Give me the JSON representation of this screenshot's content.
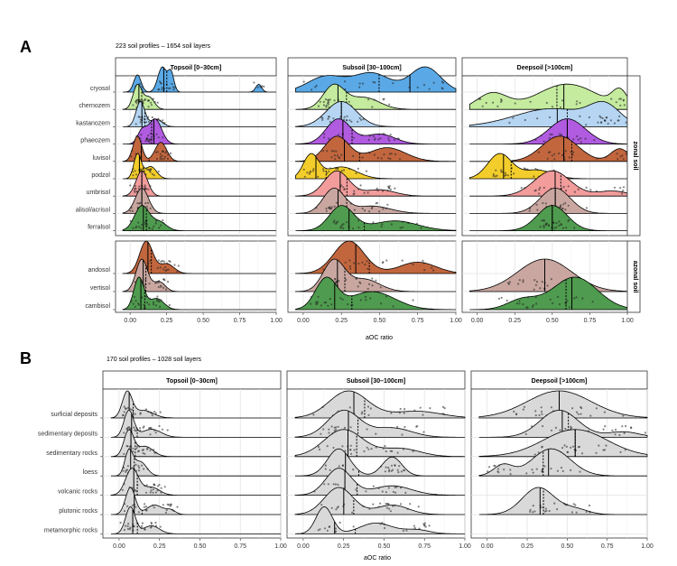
{
  "chart_data": {
    "type": "ridgeline",
    "panel_A": {
      "label": "A",
      "subtitle": "223 soil profiles – 1654 soil layers",
      "columns": [
        "Topsoil [0–30cm]",
        "Subsoil [30–100cm]",
        "Deepsoil [>100cm]"
      ],
      "groups": [
        {
          "name": "zonal soil",
          "rows": [
            "cryosol",
            "chernozem",
            "kastanozem",
            "phaeozem",
            "luvisol",
            "podzol",
            "umbrisol",
            "alisol/acrisol",
            "ferralsol"
          ]
        },
        {
          "name": "azonal soil",
          "rows": [
            "andosol",
            "vertisol",
            "cambisol"
          ]
        }
      ],
      "colors": {
        "cryosol": "#5aa9e6",
        "chernozem": "#c4eb9e",
        "kastanozem": "#b5d5f2",
        "phaeozem": "#b05be0",
        "luvisol": "#c2663e",
        "podzol": "#f3cd2b",
        "umbrisol": "#f29c9c",
        "alisol/acrisol": "#c9a7a0",
        "ferralsol": "#4f9b4f",
        "andosol": "#c2663e",
        "vertisol": "#c9a7a0",
        "cambisol": "#4f9b4f"
      },
      "xlim": [
        -0.1,
        1.0
      ],
      "xticks": [
        "0.00",
        "0.25",
        "0.50",
        "0.75",
        "1.00"
      ],
      "xlabel": "aOC ratio",
      "series": [
        {
          "cryosol": [
            [
              0.05,
              0.025,
              0.55
            ],
            [
              0.22,
              0.03,
              0.8
            ],
            [
              0.28,
              0.02,
              0.6
            ],
            [
              0.88,
              0.02,
              0.25
            ]
          ],
          "chernozem": [
            [
              0.05,
              0.03,
              1.0
            ],
            [
              0.13,
              0.035,
              0.5
            ]
          ],
          "kastanozem": [
            [
              0.07,
              0.03,
              1.0
            ],
            [
              0.18,
              0.04,
              0.3
            ]
          ],
          "phaeozem": [
            [
              0.08,
              0.03,
              0.5
            ],
            [
              0.17,
              0.045,
              1.0
            ]
          ],
          "luvisol": [
            [
              0.05,
              0.03,
              1.0
            ],
            [
              0.21,
              0.04,
              0.75
            ]
          ],
          "podzol": [
            [
              0.05,
              0.025,
              1.0
            ],
            [
              0.14,
              0.04,
              0.5
            ]
          ],
          "umbrisol": [
            [
              0.08,
              0.04,
              1.0
            ]
          ],
          "alisol/acrisol": [
            [
              0.08,
              0.045,
              1.0
            ]
          ],
          "ferralsol": [
            [
              0.08,
              0.05,
              1.0
            ],
            [
              0.2,
              0.05,
              0.35
            ]
          ],
          "andosol": [
            [
              0.11,
              0.045,
              1.0
            ],
            [
              0.25,
              0.05,
              0.3
            ]
          ],
          "vertisol": [
            [
              0.08,
              0.04,
              1.0
            ],
            [
              0.2,
              0.04,
              0.3
            ]
          ],
          "cambisol": [
            [
              0.06,
              0.035,
              1.0
            ],
            [
              0.18,
              0.05,
              0.35
            ]
          ]
        },
        {
          "cryosol": [
            [
              0.15,
              0.12,
              0.5
            ],
            [
              0.45,
              0.12,
              0.6
            ],
            [
              0.8,
              0.1,
              0.8
            ]
          ],
          "chernozem": [
            [
              0.2,
              0.07,
              1.0
            ],
            [
              0.4,
              0.1,
              0.5
            ]
          ],
          "kastanozem": [
            [
              0.25,
              0.1,
              1.0
            ]
          ],
          "phaeozem": [
            [
              0.23,
              0.08,
              1.0
            ],
            [
              0.5,
              0.1,
              0.4
            ]
          ],
          "luvisol": [
            [
              0.22,
              0.08,
              1.0
            ],
            [
              0.55,
              0.12,
              0.55
            ]
          ],
          "podzol": [
            [
              0.05,
              0.05,
              1.0
            ],
            [
              0.25,
              0.1,
              0.5
            ]
          ],
          "umbrisol": [
            [
              0.22,
              0.08,
              1.0
            ],
            [
              0.5,
              0.1,
              0.25
            ]
          ],
          "alisol/acrisol": [
            [
              0.2,
              0.07,
              1.0
            ],
            [
              0.45,
              0.12,
              0.3
            ]
          ],
          "ferralsol": [
            [
              0.25,
              0.08,
              1.0
            ],
            [
              0.6,
              0.15,
              0.4
            ]
          ],
          "andosol": [
            [
              0.3,
              0.1,
              1.0
            ],
            [
              0.75,
              0.12,
              0.35
            ]
          ],
          "vertisol": [
            [
              0.2,
              0.07,
              1.0
            ],
            [
              0.4,
              0.1,
              0.4
            ]
          ],
          "cambisol": [
            [
              0.15,
              0.07,
              1.0
            ],
            [
              0.45,
              0.15,
              0.6
            ]
          ]
        },
        {
          "chernozem": [
            [
              0.1,
              0.1,
              0.5
            ],
            [
              0.6,
              0.2,
              0.8
            ],
            [
              0.95,
              0.05,
              0.5
            ]
          ],
          "kastanozem": [
            [
              0.5,
              0.25,
              0.6
            ],
            [
              0.85,
              0.1,
              0.6
            ]
          ],
          "phaeozem": [
            [
              0.6,
              0.12,
              1.0
            ]
          ],
          "luvisol": [
            [
              0.55,
              0.12,
              1.0
            ],
            [
              0.95,
              0.06,
              0.5
            ]
          ],
          "podzol": [
            [
              0.15,
              0.08,
              1.0
            ],
            [
              0.4,
              0.1,
              0.35
            ]
          ],
          "umbrisol": [
            [
              0.5,
              0.12,
              1.0
            ],
            [
              0.9,
              0.1,
              0.2
            ]
          ],
          "alisol/acrisol": [
            [
              0.52,
              0.1,
              1.0
            ]
          ],
          "ferralsol": [
            [
              0.5,
              0.1,
              1.0
            ]
          ],
          "vertisol": [
            [
              0.45,
              0.18,
              1.0
            ]
          ],
          "cambisol": [
            [
              0.65,
              0.15,
              1.0
            ],
            [
              0.3,
              0.1,
              0.3
            ]
          ]
        }
      ]
    },
    "panel_B": {
      "label": "B",
      "subtitle": "170 soil profiles – 1028 soil layers",
      "columns": [
        "Topsoil [0–30cm]",
        "Subsoil [30–100cm]",
        "Deepsoil [>100cm]"
      ],
      "rows": [
        "surficial deposits",
        "sedimentary deposits",
        "sedimentary rocks",
        "loess",
        "volcanic rocks",
        "plutonic rocks",
        "metamorphic rocks"
      ],
      "fill_color": "#d9d9d9",
      "xlim": [
        -0.1,
        1.0
      ],
      "xticks": [
        "0.00",
        "0.25",
        "0.50",
        "0.75",
        "1.00"
      ],
      "xlabel": "aOC ratio",
      "series": [
        {
          "surficial deposits": [
            [
              0.05,
              0.03,
              1.0
            ],
            [
              0.15,
              0.06,
              0.3
            ]
          ],
          "sedimentary deposits": [
            [
              0.06,
              0.03,
              1.0
            ],
            [
              0.2,
              0.06,
              0.3
            ]
          ],
          "sedimentary rocks": [
            [
              0.06,
              0.03,
              1.0
            ],
            [
              0.16,
              0.05,
              0.4
            ]
          ],
          "loess": [
            [
              0.06,
              0.025,
              1.0
            ],
            [
              0.13,
              0.04,
              0.6
            ]
          ],
          "volcanic rocks": [
            [
              0.08,
              0.04,
              1.0
            ],
            [
              0.2,
              0.05,
              0.3
            ]
          ],
          "plutonic rocks": [
            [
              0.07,
              0.03,
              1.0
            ],
            [
              0.22,
              0.05,
              0.35
            ],
            [
              0.32,
              0.03,
              0.15
            ]
          ],
          "metamorphic rocks": [
            [
              0.07,
              0.03,
              1.0
            ],
            [
              0.2,
              0.05,
              0.3
            ]
          ]
        },
        {
          "surficial deposits": [
            [
              0.28,
              0.12,
              1.0
            ],
            [
              0.7,
              0.15,
              0.25
            ]
          ],
          "sedimentary deposits": [
            [
              0.25,
              0.1,
              1.0
            ],
            [
              0.55,
              0.12,
              0.35
            ]
          ],
          "sedimentary rocks": [
            [
              0.25,
              0.12,
              1.0
            ],
            [
              0.6,
              0.12,
              0.3
            ]
          ],
          "loess": [
            [
              0.22,
              0.07,
              1.0
            ],
            [
              0.55,
              0.06,
              0.7
            ]
          ],
          "volcanic rocks": [
            [
              0.22,
              0.08,
              1.0
            ],
            [
              0.55,
              0.12,
              0.35
            ]
          ],
          "plutonic rocks": [
            [
              0.22,
              0.09,
              1.0
            ],
            [
              0.55,
              0.1,
              0.35
            ]
          ],
          "metamorphic rocks": [
            [
              0.13,
              0.05,
              1.0
            ],
            [
              0.45,
              0.1,
              0.4
            ],
            [
              0.7,
              0.08,
              0.15
            ]
          ]
        },
        {
          "surficial deposits": [
            [
              0.45,
              0.2,
              1.0
            ]
          ],
          "sedimentary deposits": [
            [
              0.45,
              0.12,
              1.0
            ],
            [
              0.85,
              0.1,
              0.2
            ]
          ],
          "sedimentary rocks": [
            [
              0.55,
              0.2,
              1.0
            ]
          ],
          "loess": [
            [
              0.1,
              0.06,
              0.4
            ],
            [
              0.4,
              0.12,
              1.0
            ]
          ],
          "plutonic rocks": [
            [
              0.32,
              0.1,
              1.0
            ],
            [
              0.55,
              0.08,
              0.2
            ]
          ]
        }
      ]
    }
  }
}
